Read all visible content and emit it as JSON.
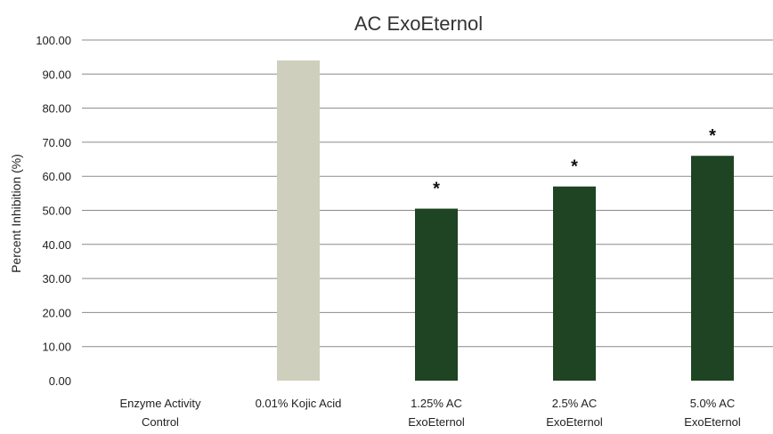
{
  "chart_data": {
    "type": "bar",
    "title": "AC ExoEternol",
    "ylabel": "Percent Inhibition (%)",
    "xlabel": "",
    "ylim": [
      0,
      100
    ],
    "yticks": [
      "0.00",
      "10.00",
      "20.00",
      "30.00",
      "40.00",
      "50.00",
      "60.00",
      "70.00",
      "80.00",
      "90.00",
      "100.00"
    ],
    "grid": true,
    "categories": [
      [
        "Enzyme Activity",
        "Control"
      ],
      [
        "0.01% Kojic Acid"
      ],
      [
        "1.25% AC",
        "ExoEternol"
      ],
      [
        "2.5% AC",
        "ExoEternol"
      ],
      [
        "5.0% AC",
        "ExoEternol"
      ]
    ],
    "values": [
      0,
      94,
      50.5,
      57,
      66
    ],
    "colors": [
      "#cfcfbd",
      "#cfcfbd",
      "#1e4423",
      "#1e4423",
      "#1e4423"
    ],
    "annotations": [
      "",
      "",
      "*",
      "*",
      "*"
    ]
  }
}
